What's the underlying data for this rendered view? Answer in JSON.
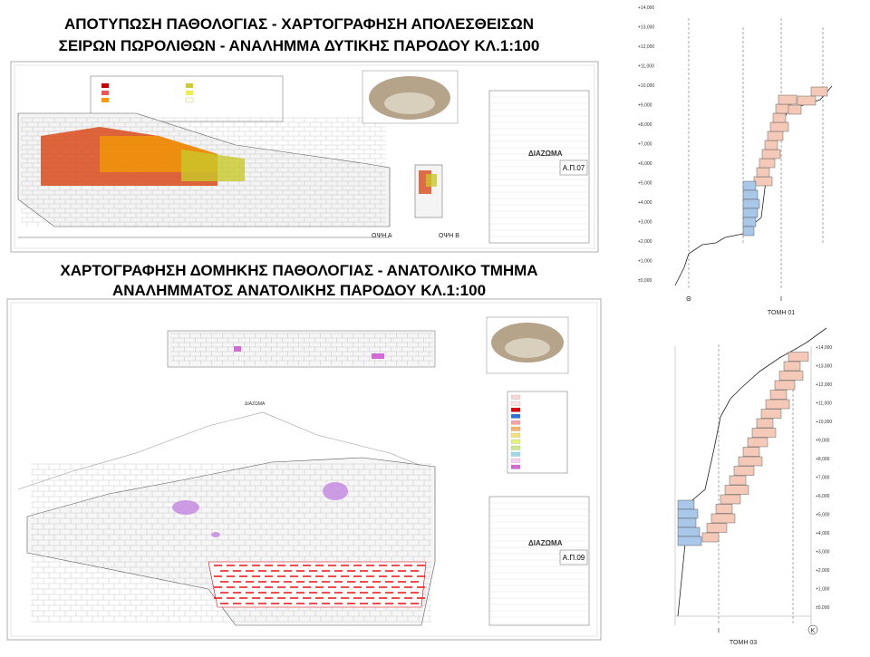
{
  "titles": [
    [
      "ΑΠΟΤΥΠΩΣΗ ΠΑΘΟΛΟΓΙΑΣ - ΧΑΡΤΟΓΡΑΦΗΣΗ ΑΠΟΛΕΣΘΕΙΣΩΝ",
      "ΣΕΙΡΩΝ ΠΩΡΟΛΙΘΩΝ - ΑΝΑΛΗΜΜΑ ΔΥΤΙΚΗΣ ΠΑΡΟΔΟΥ ΚΛ.1:100"
    ],
    [
      "ΧΑΡΤΟΓΡΑΦΗΣΗ ΔΟΜΗΚΗΣ ΠΑΘΟΛΟΓΙΑΣ - ΑΝΑΤΟΛΙΚΟ ΤΜΗΜΑ",
      "ΑΝΑΛΗΜΜΑΤΟΣ ΑΝΑΤΟΛΙΚΗΣ ΠΑΡΟΔΟΥ  ΚΛ.1:100"
    ]
  ],
  "sheet1": {
    "code": "Α.Π.07",
    "views": [
      "ΟΨΗ Α",
      "ΟΨΗ Β"
    ],
    "company": "ΔΙΑΖΩΜΑ"
  },
  "sheet2": {
    "code": "Α.Π.09",
    "company": "ΔΙΑΖΩΜΑ"
  },
  "section1": {
    "title": "ΤΟΜΗ 01",
    "axes": [
      "Θ",
      "I"
    ],
    "elevations": [
      "+14,000",
      "+13,000",
      "+12,000",
      "+11,000",
      "+10,000",
      "+9,000",
      "+8,000",
      "+7,000",
      "+6,000",
      "+5,000",
      "+4,000",
      "+3,000",
      "+2,000",
      "+1,000",
      "±0,000"
    ]
  },
  "section2": {
    "title": "ΤΟΜΗ 03",
    "axes": [
      "I",
      "K"
    ],
    "elevations": [
      "+14,000",
      "+13,000",
      "+12,000",
      "+11,000",
      "+10,000",
      "+9,000",
      "+8,000",
      "+7,000",
      "+6,000",
      "+5,000",
      "+4,000",
      "+3,000",
      "+2,000",
      "+1,000",
      "±0,000"
    ]
  }
}
